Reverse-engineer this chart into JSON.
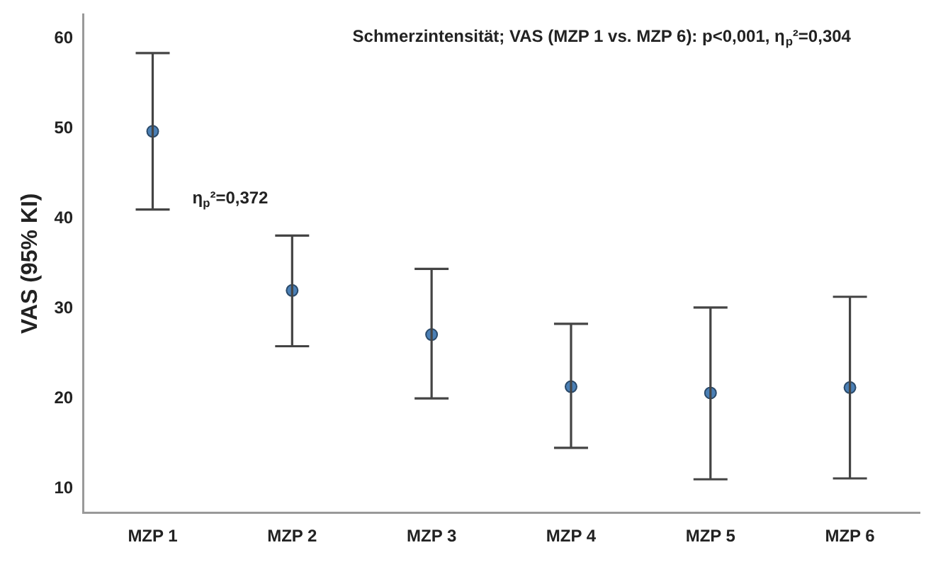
{
  "chart_data": {
    "type": "scatter",
    "title": "Schmerzintensität; VAS (MZP 1 vs. MZP 6): p<0,001, η$_{p}$²=0,304",
    "ylabel": "VAS (95% KI)",
    "categories": [
      "MZP 1",
      "MZP 2",
      "MZP 3",
      "MZP 4",
      "MZP 5",
      "MZP 6"
    ],
    "values": [
      49.7,
      32.0,
      27.1,
      21.3,
      20.6,
      21.2
    ],
    "errors": [
      [
        41.0,
        58.4
      ],
      [
        25.8,
        38.1
      ],
      [
        20.0,
        34.4
      ],
      [
        14.5,
        28.3
      ],
      [
        11.0,
        30.1
      ],
      [
        11.1,
        31.3
      ]
    ],
    "color": "#4a7fb5",
    "marker": "circle",
    "grid": false,
    "ylim": [
      7.3,
      62.7
    ],
    "yticks": [
      10,
      20,
      30,
      40,
      50,
      60
    ],
    "annotations": [
      "η$_{p}$²=0,372"
    ]
  }
}
